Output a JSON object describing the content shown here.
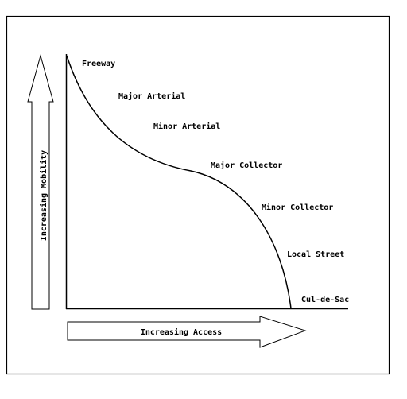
{
  "diagram": {
    "vertical_arrow_label": "Increasing Mobility",
    "horizontal_arrow_label": "Increasing Access",
    "road_classes": [
      "Freeway",
      "Major Arterial",
      "Minor Arterial",
      "Major Collector",
      "Minor Collector",
      "Local Street",
      "Cul-de-Sac"
    ],
    "colors": {
      "line": "#000000",
      "background": "#ffffff"
    }
  }
}
